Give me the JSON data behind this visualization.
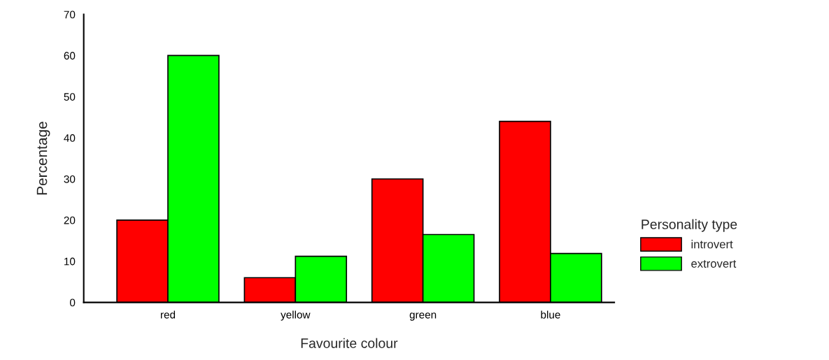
{
  "chart_data": {
    "type": "bar",
    "xlabel": "Favourite colour",
    "ylabel": "Percentage",
    "legend_title": "Personality type",
    "categories": [
      "red",
      "yellow",
      "green",
      "blue"
    ],
    "series": [
      {
        "name": "introvert",
        "color": "#ff0000",
        "values": [
          20,
          6,
          30,
          44
        ]
      },
      {
        "name": "extrovert",
        "color": "#00ff00",
        "values": [
          60,
          11.2,
          16.5,
          11.9
        ]
      }
    ],
    "ylim": [
      0,
      70
    ],
    "yticks": [
      0,
      10,
      20,
      30,
      40,
      50,
      60,
      70
    ],
    "grid": false,
    "legend": "right"
  }
}
